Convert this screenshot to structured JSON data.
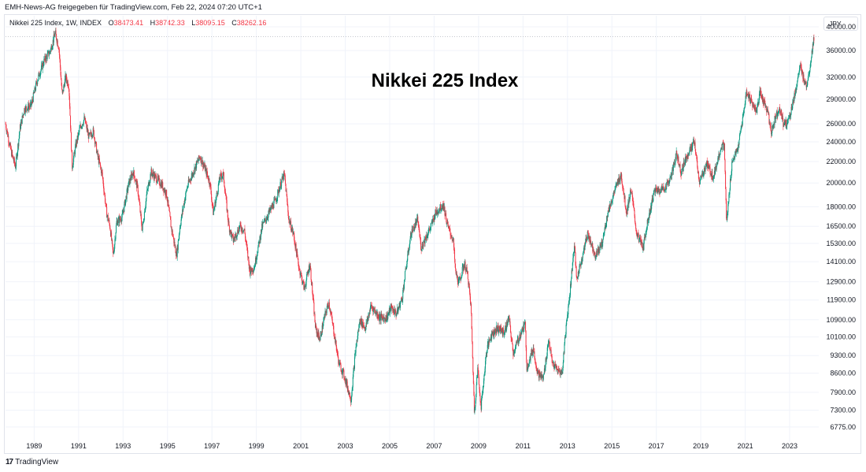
{
  "header": {
    "attribution": "EMH-News-AG freigegeben für TradingView.com, Feb 22, 2024 07:20 UTC+1"
  },
  "legend": {
    "symbol": "Nikkei 225 Index, 1W, INDEX",
    "open_label": "O",
    "open": "38473.41",
    "high_label": "H",
    "high": "38742.33",
    "low_label": "L",
    "low": "38095.15",
    "close_label": "C",
    "close": "38262.16"
  },
  "currency_button": "JPY",
  "footer": {
    "logo_mark": "17",
    "brand": "TradingView"
  },
  "colors": {
    "up": "#089981",
    "down": "#f23645",
    "grid": "#f0f3fa",
    "axis_text": "#131722"
  },
  "chart_data": {
    "type": "candlestick",
    "title": "Nikkei 225 Index",
    "interval": "1W",
    "currency": "JPY",
    "y_scale": "log",
    "grid": true,
    "y_ticks": [
      "40000.00",
      "36000.00",
      "32000.00",
      "29000.00",
      "26000.00",
      "24000.00",
      "22000.00",
      "20000.00",
      "18000.00",
      "16500.00",
      "15300.00",
      "14100.00",
      "12900.00",
      "11900.00",
      "10900.00",
      "10100.00",
      "9300.00",
      "8600.00",
      "7900.00",
      "7300.00",
      "6775.00"
    ],
    "x_ticks": [
      "1989",
      "1991",
      "1993",
      "1995",
      "1997",
      "1999",
      "2001",
      "2003",
      "2005",
      "2007",
      "2009",
      "2011",
      "2013",
      "2015",
      "2017",
      "2019",
      "2021",
      "2023"
    ],
    "last_price": 38262.16,
    "path": [
      [
        1987.75,
        26000
      ],
      [
        1988.0,
        23000
      ],
      [
        1988.2,
        21500
      ],
      [
        1988.4,
        25500
      ],
      [
        1988.6,
        27800
      ],
      [
        1988.9,
        28200
      ],
      [
        1989.2,
        31800
      ],
      [
        1989.5,
        34500
      ],
      [
        1989.75,
        35800
      ],
      [
        1989.99,
        38900
      ],
      [
        1990.15,
        36500
      ],
      [
        1990.3,
        29500
      ],
      [
        1990.45,
        32000
      ],
      [
        1990.6,
        30800
      ],
      [
        1990.75,
        21500
      ],
      [
        1990.9,
        23500
      ],
      [
        1991.1,
        25500
      ],
      [
        1991.3,
        26600
      ],
      [
        1991.5,
        24500
      ],
      [
        1991.7,
        25200
      ],
      [
        1991.9,
        22500
      ],
      [
        1992.1,
        20800
      ],
      [
        1992.3,
        17500
      ],
      [
        1992.45,
        16500
      ],
      [
        1992.6,
        14500
      ],
      [
        1992.75,
        16800
      ],
      [
        1993.0,
        17200
      ],
      [
        1993.3,
        20000
      ],
      [
        1993.5,
        21000
      ],
      [
        1993.7,
        19500
      ],
      [
        1993.9,
        16200
      ],
      [
        1994.1,
        19000
      ],
      [
        1994.3,
        21000
      ],
      [
        1994.5,
        20500
      ],
      [
        1994.8,
        19800
      ],
      [
        1995.0,
        19000
      ],
      [
        1995.2,
        16500
      ],
      [
        1995.45,
        14500
      ],
      [
        1995.6,
        16500
      ],
      [
        1995.8,
        18500
      ],
      [
        1995.95,
        19800
      ],
      [
        1996.3,
        21500
      ],
      [
        1996.5,
        22500
      ],
      [
        1996.75,
        21200
      ],
      [
        1996.95,
        20000
      ],
      [
        1997.1,
        17500
      ],
      [
        1997.4,
        20500
      ],
      [
        1997.55,
        20800
      ],
      [
        1997.8,
        16500
      ],
      [
        1998.0,
        15500
      ],
      [
        1998.3,
        16500
      ],
      [
        1998.5,
        16200
      ],
      [
        1998.75,
        13500
      ],
      [
        1998.95,
        13800
      ],
      [
        1999.3,
        16500
      ],
      [
        1999.6,
        17500
      ],
      [
        1999.9,
        18500
      ],
      [
        2000.15,
        20000
      ],
      [
        2000.3,
        20800
      ],
      [
        2000.5,
        17000
      ],
      [
        2000.7,
        16000
      ],
      [
        2000.95,
        13800
      ],
      [
        2001.2,
        12500
      ],
      [
        2001.45,
        14000
      ],
      [
        2001.7,
        10500
      ],
      [
        2001.9,
        10000
      ],
      [
        2002.1,
        11000
      ],
      [
        2002.3,
        11800
      ],
      [
        2002.5,
        10500
      ],
      [
        2002.75,
        9000
      ],
      [
        2002.95,
        8600
      ],
      [
        2003.1,
        8200
      ],
      [
        2003.3,
        7650
      ],
      [
        2003.5,
        9500
      ],
      [
        2003.7,
        10900
      ],
      [
        2003.95,
        10500
      ],
      [
        2004.2,
        11600
      ],
      [
        2004.4,
        11300
      ],
      [
        2004.6,
        11000
      ],
      [
        2004.9,
        11000
      ],
      [
        2005.1,
        11500
      ],
      [
        2005.35,
        11200
      ],
      [
        2005.6,
        12000
      ],
      [
        2005.75,
        13500
      ],
      [
        2006.0,
        16000
      ],
      [
        2006.3,
        17000
      ],
      [
        2006.45,
        15000
      ],
      [
        2006.6,
        15500
      ],
      [
        2006.9,
        16500
      ],
      [
        2007.1,
        17500
      ],
      [
        2007.45,
        18200
      ],
      [
        2007.65,
        16500
      ],
      [
        2007.9,
        15500
      ],
      [
        2008.0,
        13500
      ],
      [
        2008.15,
        12800
      ],
      [
        2008.4,
        14000
      ],
      [
        2008.55,
        13300
      ],
      [
        2008.7,
        11500
      ],
      [
        2008.85,
        7200
      ],
      [
        2009.0,
        8800
      ],
      [
        2009.15,
        7400
      ],
      [
        2009.4,
        9500
      ],
      [
        2009.6,
        10200
      ],
      [
        2009.9,
        10500
      ],
      [
        2010.2,
        10300
      ],
      [
        2010.4,
        11000
      ],
      [
        2010.6,
        9400
      ],
      [
        2010.95,
        10300
      ],
      [
        2011.15,
        10700
      ],
      [
        2011.2,
        8800
      ],
      [
        2011.5,
        9600
      ],
      [
        2011.7,
        8600
      ],
      [
        2011.95,
        8400
      ],
      [
        2012.2,
        10000
      ],
      [
        2012.35,
        9000
      ],
      [
        2012.6,
        8700
      ],
      [
        2012.8,
        8600
      ],
      [
        2012.95,
        10300
      ],
      [
        2013.15,
        12300
      ],
      [
        2013.35,
        15300
      ],
      [
        2013.45,
        13000
      ],
      [
        2013.65,
        14100
      ],
      [
        2013.95,
        16000
      ],
      [
        2014.3,
        14500
      ],
      [
        2014.6,
        15300
      ],
      [
        2014.85,
        17500
      ],
      [
        2015.2,
        19500
      ],
      [
        2015.45,
        20800
      ],
      [
        2015.7,
        17500
      ],
      [
        2015.9,
        19500
      ],
      [
        2016.15,
        16000
      ],
      [
        2016.45,
        15000
      ],
      [
        2016.6,
        16500
      ],
      [
        2016.95,
        19300
      ],
      [
        2017.4,
        19500
      ],
      [
        2017.7,
        20500
      ],
      [
        2017.95,
        22800
      ],
      [
        2018.15,
        21000
      ],
      [
        2018.4,
        22500
      ],
      [
        2018.75,
        24000
      ],
      [
        2018.98,
        20000
      ],
      [
        2019.3,
        21800
      ],
      [
        2019.6,
        20500
      ],
      [
        2019.95,
        23500
      ],
      [
        2020.1,
        23500
      ],
      [
        2020.2,
        16700
      ],
      [
        2020.45,
        22000
      ],
      [
        2020.7,
        23200
      ],
      [
        2020.95,
        27000
      ],
      [
        2021.1,
        30000
      ],
      [
        2021.3,
        28800
      ],
      [
        2021.55,
        27500
      ],
      [
        2021.7,
        29800
      ],
      [
        2021.9,
        28500
      ],
      [
        2022.05,
        27500
      ],
      [
        2022.2,
        25000
      ],
      [
        2022.4,
        26800
      ],
      [
        2022.6,
        28000
      ],
      [
        2022.75,
        26000
      ],
      [
        2022.95,
        26200
      ],
      [
        2023.1,
        27500
      ],
      [
        2023.35,
        30800
      ],
      [
        2023.5,
        33500
      ],
      [
        2023.65,
        32000
      ],
      [
        2023.8,
        30800
      ],
      [
        2023.95,
        33500
      ],
      [
        2024.05,
        36000
      ],
      [
        2024.14,
        38262
      ]
    ]
  }
}
